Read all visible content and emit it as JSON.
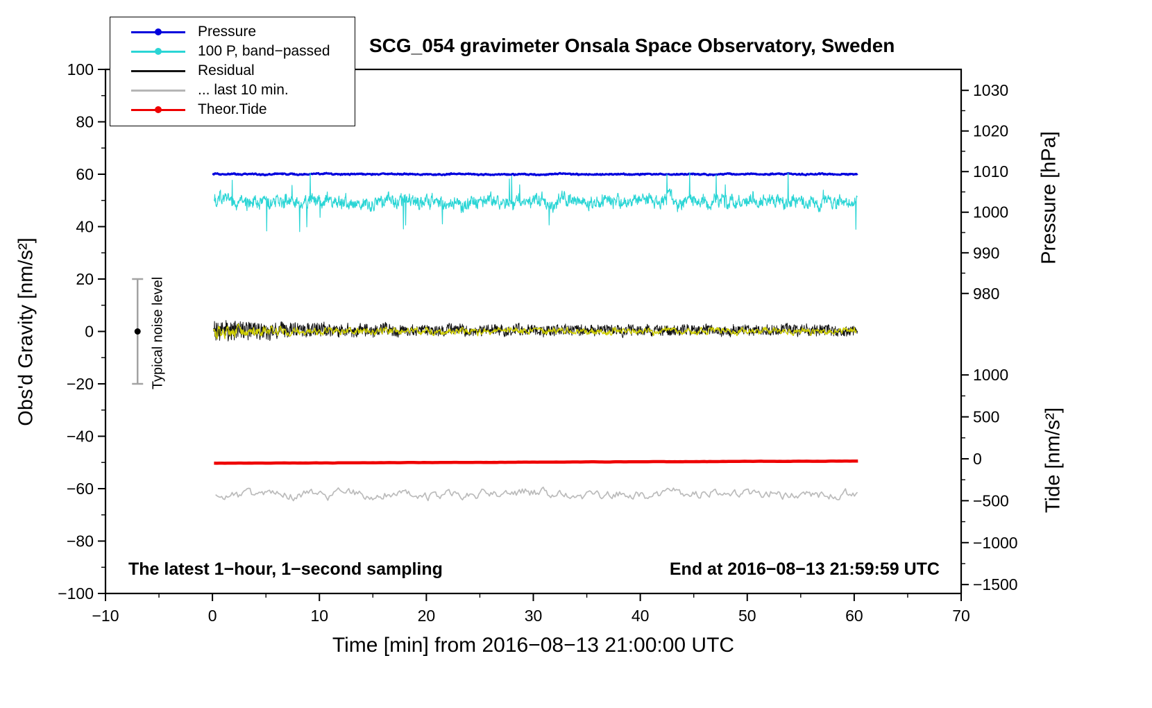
{
  "chart_data": {
    "type": "line",
    "title": "SCG_054 gravimeter Onsala Space Observatory, Sweden",
    "xlabel": "Time [min] from 2016−08−13 21:00:00 UTC",
    "ylabel_left": "Obs'd Gravity [nm/s²]",
    "ylabel_pressure": "Pressure [hPa]",
    "ylabel_tide": "Tide [nm/s²]",
    "xlim": [
      -10,
      70
    ],
    "ylim_left": [
      -100,
      100
    ],
    "x_major_ticks": [
      -10,
      0,
      10,
      20,
      30,
      40,
      50,
      60,
      70
    ],
    "x_minor_step": 5,
    "y_major_ticks": [
      -100,
      -80,
      -60,
      -40,
      -20,
      0,
      20,
      40,
      60,
      80,
      100
    ],
    "y_minor_step": 10,
    "pressure_ticks": [
      {
        "label": "1030",
        "value_hpa": 1030,
        "pos": 92.0
      },
      {
        "label": "1020",
        "value_hpa": 1020,
        "pos": 76.5
      },
      {
        "label": "1010",
        "value_hpa": 1010,
        "pos": 61.0
      },
      {
        "label": "1000",
        "value_hpa": 1000,
        "pos": 45.5
      },
      {
        "label": "990",
        "value_hpa": 990,
        "pos": 30.0
      },
      {
        "label": "980",
        "value_hpa": 980,
        "pos": 14.5
      }
    ],
    "tide_ticks": [
      {
        "label": "1000",
        "value_tide": 1000,
        "pos": -16.6
      },
      {
        "label": "500",
        "value_tide": 500,
        "pos": -32.6
      },
      {
        "label": "0",
        "value_tide": 0,
        "pos": -48.6
      },
      {
        "label": "−500",
        "value_tide": -500,
        "pos": -64.6
      },
      {
        "label": "−1000",
        "value_tide": -1000,
        "pos": -80.6
      },
      {
        "label": "−1500",
        "value_tide": -1500,
        "pos": -96.6
      }
    ],
    "noise_bar": {
      "label": "Typical noise level",
      "x": -7,
      "y_min": -20,
      "y_max": 20,
      "dot_y": 0
    },
    "annotations": {
      "sampling": "The latest 1−hour, 1−second sampling",
      "end": "End at 2016−08−13 21:59:59 UTC"
    },
    "legend": [
      {
        "label": "Pressure",
        "color": "#0000dd",
        "marker": true
      },
      {
        "label": "100 P, band−passed",
        "color": "#2ad5d5",
        "marker": true
      },
      {
        "label": "Residual",
        "color": "#121212",
        "marker": false
      },
      {
        "label": "... last 10 min.",
        "color": "#b5b5b5",
        "marker": false
      },
      {
        "label": "Theor.Tide",
        "color": "#ee0000",
        "marker": true
      }
    ],
    "series": [
      {
        "name": "pressure-line",
        "color": "#0000dd",
        "width": 3,
        "points": 1400,
        "x_start": 0,
        "x_end": 60.3,
        "baseline": 60,
        "slope": 0,
        "fast": {
          "sm": 0.4,
          "amp": 0.18
        },
        "slow": {
          "sm": 0.92,
          "amp": 0.08
        }
      },
      {
        "name": "band-passed-line",
        "color": "#2ad5d5",
        "width": 1.2,
        "points": 1700,
        "x_start": 0.15,
        "x_end": 60.3,
        "baseline": 49.6,
        "slope": 0,
        "fast": {
          "sm": 0.3,
          "amp": 1.9
        },
        "slow": {
          "sm": 0.86,
          "amp": 0.8
        },
        "spikes": {
          "prob": 0.012,
          "min": 4,
          "max": 12
        }
      },
      {
        "name": "residual-line",
        "color": "#121212",
        "width": 1,
        "points": 1900,
        "x_start": 0.1,
        "x_end": 60.3,
        "baseline": 0.4,
        "slope": 0,
        "fast": {
          "sm": 0.15,
          "amp": 1.9
        },
        "slow": {
          "sm": 0.8,
          "amp": 0.4
        },
        "decay": {
          "extra": 2.4,
          "tau": 7
        }
      },
      {
        "name": "residual-band-line",
        "color": "#cfcf00",
        "width": 1.4,
        "points": 1300,
        "x_start": 0.1,
        "x_end": 60.2,
        "baseline": 0.2,
        "slope": 0,
        "fast": {
          "sm": 0.55,
          "amp": 0.85
        },
        "slow": {
          "sm": 0.9,
          "amp": 0.25
        },
        "decay": {
          "extra": 1.1,
          "tau": 7
        }
      },
      {
        "name": "theor-tide-line",
        "color": "#ee0000",
        "width": 4.5,
        "points": 240,
        "x_start": 0.15,
        "x_end": 60.35,
        "baseline": -50.3,
        "slope": 0.014,
        "fast": {
          "sm": 0.5,
          "amp": 0.03
        },
        "slow": {
          "sm": 0.9,
          "amp": 0.015
        }
      },
      {
        "name": "last-10-min-line",
        "color": "#bbbbbb",
        "width": 1.7,
        "points": 430,
        "x_start": 0.3,
        "x_end": 60.3,
        "baseline": -62.2,
        "slope": 0,
        "fast": {
          "sm": 0.45,
          "amp": 1.25
        },
        "slow": {
          "sm": 0.85,
          "amp": 0.4
        }
      }
    ]
  }
}
